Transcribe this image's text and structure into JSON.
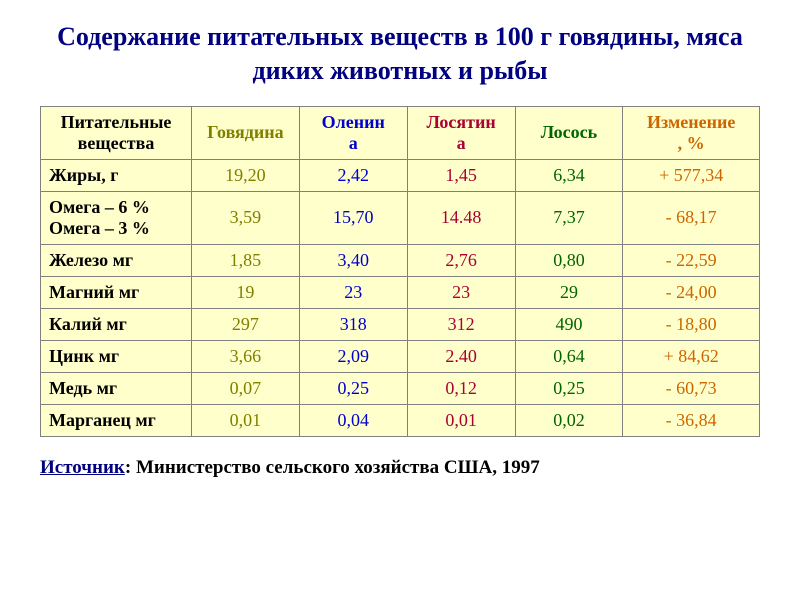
{
  "title": "Содержание питательных  веществ в 100 г говядины, мяса диких  животных и рыбы",
  "columns": {
    "nutrient": "Питательные вещества",
    "beef": "Говядина",
    "venison_l1": "Оленин",
    "venison_l2": "а",
    "moose_l1": "Лосятин",
    "moose_l2": "а",
    "salmon": "Лосось",
    "change_l1": "Изменение",
    "change_l2": ", %"
  },
  "rows": [
    {
      "nutrient": "Жиры, г",
      "beef": "19,20",
      "venison": "2,42",
      "moose": "1,45",
      "salmon": "6,34",
      "change": "+ 577,34"
    },
    {
      "nutrient_l1": "Омега – 6 %",
      "nutrient_l2": "Омега – 3 %",
      "beef": "3,59",
      "venison": "15,70",
      "moose": "14.48",
      "salmon": "7,37",
      "change": "- 68,17"
    },
    {
      "nutrient": "Железо мг",
      "beef": "1,85",
      "venison": "3,40",
      "moose": "2,76",
      "salmon": "0,80",
      "change": "- 22,59"
    },
    {
      "nutrient": "Магний мг",
      "beef": "19",
      "venison": "23",
      "moose": "23",
      "salmon": "29",
      "change": "- 24,00"
    },
    {
      "nutrient": "Калий мг",
      "beef": "297",
      "venison": "318",
      "moose": "312",
      "salmon": "490",
      "change": "- 18,80"
    },
    {
      "nutrient": "Цинк мг",
      "beef": "3,66",
      "venison": "2,09",
      "moose": "2.40",
      "salmon": "0,64",
      "change": "+ 84,62"
    },
    {
      "nutrient": "Медь мг",
      "beef": "0,07",
      "venison": "0,25",
      "moose": "0,12",
      "salmon": "0,25",
      "change": "- 60,73"
    },
    {
      "nutrient": "Марганец  мг",
      "beef": "0,01",
      "venison": "0,04",
      "moose": "0,01",
      "salmon": "0,02",
      "change": "- 36,84"
    }
  ],
  "source_label": "Источник",
  "source_text": ": Министерство сельского хозяйства США, 1997",
  "colors": {
    "title": "#000080",
    "bg_table": "#ffffcc",
    "border": "#808080",
    "beef": "#808000",
    "venison": "#0000cc",
    "moose": "#aa0033",
    "salmon": "#006600",
    "change": "#cc6600"
  }
}
